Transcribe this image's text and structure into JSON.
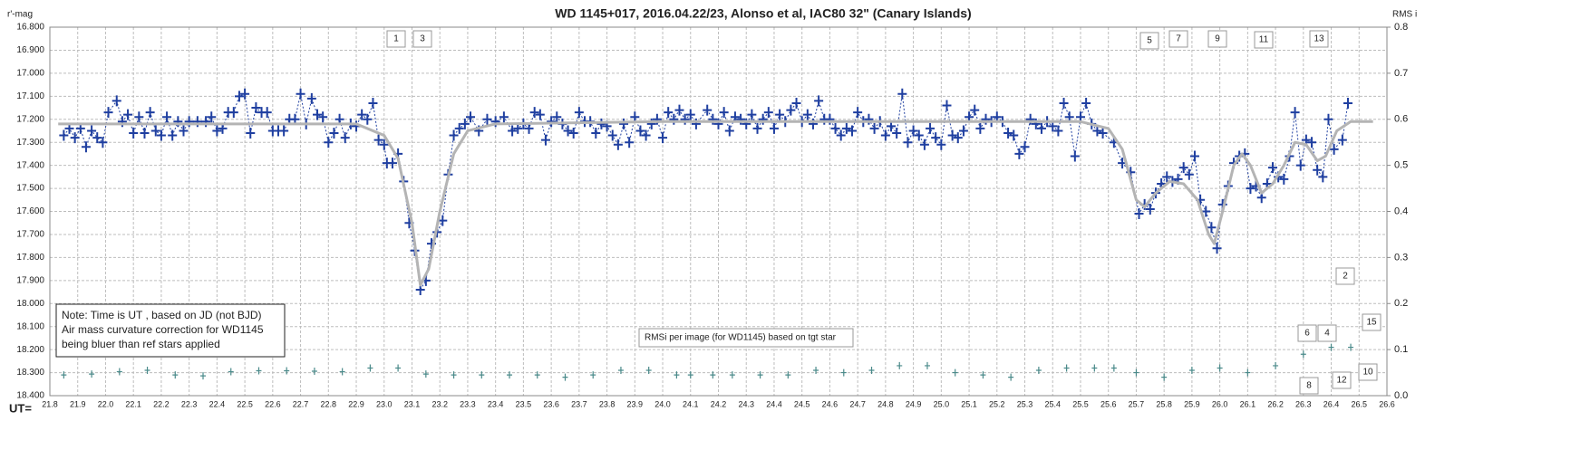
{
  "chart_data": {
    "type": "line",
    "title": "WD 1145+017,  2016.04.22/23,  Alonso  et al, IAC80  32\" (Canary Islands)",
    "y_label": "r'-mag",
    "y2_label": "RMS i",
    "x_label": "UT=",
    "y_inverted": true,
    "grid": true,
    "xlim": [
      21.8,
      26.6
    ],
    "xticks": [
      21.8,
      21.9,
      {
        "value": 22.0,
        "label": "22.0"
      },
      22.1,
      22.2,
      22.3,
      22.4,
      22.5,
      22.6,
      22.7,
      22.8,
      22.9,
      {
        "value": 23.0,
        "label": "23.0"
      },
      23.1,
      23.2,
      23.3,
      23.4,
      23.5,
      23.6,
      23.7,
      23.8,
      23.9,
      {
        "value": 24.0,
        "label": "24.0"
      },
      24.1,
      24.2,
      24.3,
      24.4,
      24.5,
      24.6,
      24.7,
      24.8,
      24.9,
      {
        "value": 25.0,
        "label": "25.0"
      },
      25.1,
      25.2,
      25.3,
      25.4,
      25.5,
      25.6,
      25.7,
      25.8,
      25.9,
      {
        "value": 26.0,
        "label": "26.0"
      },
      26.1,
      26.2,
      26.3,
      26.4,
      26.5,
      26.6
    ],
    "ylim": [
      16.8,
      18.4
    ],
    "yticks": [
      {
        "value": 16.8,
        "label": "16.800"
      },
      {
        "value": 16.9,
        "label": "16.900"
      },
      {
        "value": 17.0,
        "label": "17.000"
      },
      {
        "value": 17.1,
        "label": "17.100"
      },
      {
        "value": 17.2,
        "label": "17.200"
      },
      {
        "value": 17.3,
        "label": "17.300"
      },
      {
        "value": 17.4,
        "label": "17.400"
      },
      {
        "value": 17.5,
        "label": "17.500"
      },
      {
        "value": 17.6,
        "label": "17.600"
      },
      {
        "value": 17.7,
        "label": "17.700"
      },
      {
        "value": 17.8,
        "label": "17.800"
      },
      {
        "value": 17.9,
        "label": "17.900"
      },
      {
        "value": 18.0,
        "label": "18.000"
      },
      {
        "value": 18.1,
        "label": "18.100"
      },
      {
        "value": 18.2,
        "label": "18.200"
      },
      {
        "value": 18.3,
        "label": "18.300"
      },
      {
        "value": 18.4,
        "label": "18.400"
      }
    ],
    "y2lim": [
      0,
      0.8
    ],
    "y2ticks": [
      0.8,
      0.7,
      0.6,
      0.5,
      0.4,
      0.3,
      0.2,
      0.1,
      {
        "value": 0,
        "label": "0.0"
      }
    ],
    "series": [
      {
        "color": "#1f3fa0",
        "marker": "plus",
        "line": "dotted",
        "x": [
          21.85,
          21.87,
          21.89,
          21.91,
          21.93,
          21.95,
          21.97,
          21.99,
          22.01,
          22.04,
          22.06,
          22.08,
          22.1,
          22.12,
          22.14,
          22.16,
          22.18,
          22.2,
          22.22,
          22.24,
          22.26,
          22.28,
          22.3,
          22.33,
          22.36,
          22.38,
          22.4,
          22.42,
          22.44,
          22.46,
          22.48,
          22.5,
          22.52,
          22.54,
          22.56,
          22.58,
          22.6,
          22.62,
          22.64,
          22.66,
          22.68,
          22.7,
          22.72,
          22.74,
          22.76,
          22.78,
          22.8,
          22.82,
          22.84,
          22.86,
          22.88,
          22.9,
          22.92,
          22.94,
          22.96,
          22.98,
          23.0,
          23.01,
          23.03,
          23.05,
          23.07,
          23.09,
          23.11,
          23.13,
          23.15,
          23.17,
          23.19,
          23.21,
          23.23,
          23.25,
          23.27,
          23.29,
          23.31,
          23.34,
          23.37,
          23.4,
          23.43,
          23.46,
          23.48,
          23.5,
          23.52,
          23.54,
          23.56,
          23.58,
          23.6,
          23.62,
          23.64,
          23.66,
          23.68,
          23.7,
          23.72,
          23.74,
          23.76,
          23.78,
          23.8,
          23.82,
          23.84,
          23.86,
          23.88,
          23.9,
          23.92,
          23.94,
          23.96,
          23.98,
          24.0,
          24.02,
          24.04,
          24.06,
          24.08,
          24.1,
          24.12,
          24.16,
          24.18,
          24.2,
          24.22,
          24.24,
          24.26,
          24.28,
          24.3,
          24.32,
          24.34,
          24.36,
          24.38,
          24.4,
          24.42,
          24.44,
          24.46,
          24.48,
          24.5,
          24.52,
          24.54,
          24.56,
          24.58,
          24.6,
          24.62,
          24.64,
          24.66,
          24.68,
          24.7,
          24.72,
          24.74,
          24.76,
          24.78,
          24.8,
          24.82,
          24.84,
          24.86,
          24.88,
          24.9,
          24.92,
          24.94,
          24.96,
          24.98,
          25.0,
          25.02,
          25.04,
          25.06,
          25.08,
          25.1,
          25.12,
          25.14,
          25.16,
          25.18,
          25.2,
          25.22,
          25.24,
          25.26,
          25.28,
          25.3,
          25.32,
          25.34,
          25.36,
          25.38,
          25.4,
          25.42,
          25.44,
          25.46,
          25.48,
          25.5,
          25.52,
          25.54,
          25.56,
          25.58,
          25.62,
          25.65,
          25.68,
          25.71,
          25.73,
          25.75,
          25.77,
          25.79,
          25.81,
          25.83,
          25.85,
          25.87,
          25.89,
          25.91,
          25.93,
          25.95,
          25.97,
          25.99,
          26.01,
          26.03,
          26.05,
          26.07,
          26.09,
          26.11,
          26.13,
          26.15,
          26.17,
          26.19,
          26.21,
          26.23,
          26.25,
          26.27,
          26.29,
          26.31,
          26.33,
          26.35,
          26.37,
          26.39,
          26.41,
          26.44,
          26.46
        ],
        "values": [
          17.27,
          17.24,
          17.28,
          17.24,
          17.32,
          17.25,
          17.28,
          17.3,
          17.17,
          17.12,
          17.21,
          17.18,
          17.26,
          17.19,
          17.26,
          17.17,
          17.25,
          17.27,
          17.19,
          17.27,
          17.21,
          17.25,
          17.21,
          17.21,
          17.21,
          17.19,
          17.25,
          17.24,
          17.17,
          17.17,
          17.1,
          17.09,
          17.26,
          17.15,
          17.17,
          17.17,
          17.25,
          17.25,
          17.25,
          17.2,
          17.2,
          17.09,
          17.22,
          17.11,
          17.18,
          17.19,
          17.3,
          17.26,
          17.2,
          17.28,
          17.22,
          17.23,
          17.18,
          17.2,
          17.13,
          17.29,
          17.31,
          17.39,
          17.39,
          17.35,
          17.47,
          17.65,
          17.77,
          17.94,
          17.9,
          17.74,
          17.69,
          17.64,
          17.44,
          17.27,
          17.24,
          17.22,
          17.19,
          17.25,
          17.2,
          17.21,
          17.19,
          17.25,
          17.24,
          17.22,
          17.24,
          17.17,
          17.18,
          17.29,
          17.21,
          17.19,
          17.22,
          17.25,
          17.26,
          17.17,
          17.21,
          17.21,
          17.26,
          17.22,
          17.23,
          17.27,
          17.31,
          17.22,
          17.3,
          17.19,
          17.25,
          17.27,
          17.22,
          17.2,
          17.28,
          17.17,
          17.2,
          17.16,
          17.2,
          17.18,
          17.22,
          17.16,
          17.2,
          17.22,
          17.17,
          17.25,
          17.19,
          17.2,
          17.22,
          17.18,
          17.24,
          17.2,
          17.17,
          17.24,
          17.18,
          17.21,
          17.16,
          17.13,
          17.21,
          17.18,
          17.22,
          17.12,
          17.2,
          17.2,
          17.24,
          17.27,
          17.24,
          17.25,
          17.17,
          17.21,
          17.2,
          17.24,
          17.21,
          17.27,
          17.23,
          17.26,
          17.09,
          17.3,
          17.25,
          17.27,
          17.31,
          17.24,
          17.28,
          17.31,
          17.14,
          17.27,
          17.28,
          17.25,
          17.19,
          17.16,
          17.24,
          17.2,
          17.21,
          17.19,
          17.21,
          17.26,
          17.27,
          17.35,
          17.32,
          17.2,
          17.22,
          17.24,
          17.21,
          17.23,
          17.25,
          17.13,
          17.19,
          17.36,
          17.19,
          17.13,
          17.22,
          17.25,
          17.26,
          17.3,
          17.39,
          17.43,
          17.61,
          17.57,
          17.59,
          17.52,
          17.48,
          17.45,
          17.47,
          17.46,
          17.41,
          17.44,
          17.36,
          17.55,
          17.6,
          17.67,
          17.76,
          17.57,
          17.49,
          17.39,
          17.36,
          17.35,
          17.5,
          17.49,
          17.54,
          17.48,
          17.41,
          17.45,
          17.46,
          17.36,
          17.17,
          17.4,
          17.29,
          17.3,
          17.42,
          17.45,
          17.2,
          17.33,
          17.29,
          17.13
        ]
      },
      {
        "color": "#b4b4b4",
        "marker": "none",
        "line": "solid",
        "x": [
          21.83,
          22.9,
          23.0,
          23.05,
          23.1,
          23.13,
          23.16,
          23.2,
          23.25,
          23.3,
          23.4,
          24.0,
          25.0,
          25.5,
          25.6,
          25.65,
          25.7,
          25.73,
          25.77,
          25.82,
          25.87,
          25.92,
          25.96,
          25.98,
          26.01,
          26.05,
          26.08,
          26.11,
          26.15,
          26.19,
          26.23,
          26.27,
          26.31,
          26.35,
          26.38,
          26.42,
          26.47,
          26.55
        ],
        "values": [
          17.22,
          17.22,
          17.27,
          17.37,
          17.65,
          17.92,
          17.85,
          17.6,
          17.35,
          17.25,
          17.22,
          17.21,
          17.21,
          17.21,
          17.24,
          17.33,
          17.55,
          17.58,
          17.52,
          17.47,
          17.48,
          17.55,
          17.7,
          17.74,
          17.6,
          17.4,
          17.35,
          17.4,
          17.52,
          17.48,
          17.4,
          17.3,
          17.31,
          17.38,
          17.36,
          17.25,
          17.21,
          17.21
        ]
      },
      {
        "color": "#4a8a8a",
        "marker": "small-plus",
        "line": "none",
        "axis": "y2",
        "x": [
          21.85,
          21.95,
          22.05,
          22.15,
          22.25,
          22.35,
          22.45,
          22.55,
          22.65,
          22.75,
          22.85,
          22.95,
          23.05,
          23.15,
          23.25,
          23.35,
          23.45,
          23.55,
          23.65,
          23.75,
          23.85,
          23.95,
          24.05,
          24.1,
          24.14,
          24.18,
          24.25,
          24.35,
          24.45,
          24.55,
          24.65,
          24.75,
          24.85,
          24.95,
          25.05,
          25.15,
          25.25,
          25.35,
          25.45,
          25.55,
          25.58,
          25.62,
          25.7,
          25.8,
          25.9,
          26.0,
          26.1,
          26.2,
          26.3,
          26.4,
          26.47
        ],
        "values": [
          0.045,
          0.047,
          0.052,
          0.055,
          0.045,
          0.043,
          0.052,
          0.054,
          0.054,
          0.053,
          0.052,
          0.06,
          0.06,
          0.047,
          0.045,
          0.045,
          0.045,
          0.045,
          0.04,
          0.045,
          0.055,
          0.055,
          0.045,
          0.045,
          null,
          0.045,
          0.045,
          0.045,
          0.045,
          0.055,
          0.05,
          0.055,
          0.065,
          0.065,
          0.05,
          0.045,
          0.04,
          0.055,
          0.06,
          0.06,
          null,
          0.06,
          0.05,
          0.04,
          0.055,
          0.06,
          0.05,
          0.065,
          0.09,
          0.105,
          0.105
        ]
      }
    ],
    "annotations": [
      "1",
      "3",
      "5",
      "7",
      "9",
      "11",
      "13",
      "2",
      "6",
      "4",
      "15",
      "8",
      "12",
      "10"
    ],
    "note": [
      "Note: Time is UT , based on JD (not BJD)",
      "Air mass  curvature correction for WD1145",
      "being bluer than ref stars applied"
    ],
    "rms_label": "RMSi per image (for WD1145) based on tgt star"
  }
}
